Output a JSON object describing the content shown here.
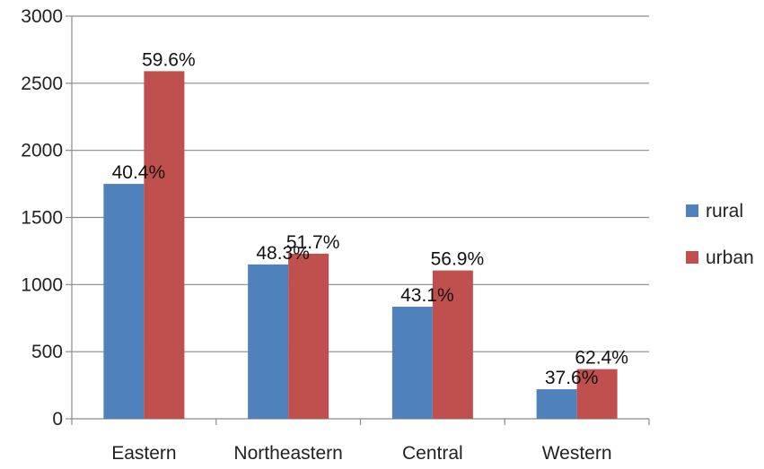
{
  "chart_data": {
    "type": "bar",
    "categories": [
      "Eastern",
      "Northeastern",
      "Central",
      "Western"
    ],
    "series": [
      {
        "name": "rural",
        "color": "#4f81bd",
        "values": [
          1750,
          1150,
          835,
          220
        ],
        "labels": [
          "40.4%",
          "48.3%",
          "43.1%",
          "37.6%"
        ]
      },
      {
        "name": "urban",
        "color": "#c0504d",
        "values": [
          2590,
          1230,
          1105,
          370
        ],
        "labels": [
          "59.6%",
          "51.7%",
          "56.9%",
          "62.4%"
        ]
      }
    ],
    "title": "",
    "xlabel": "",
    "ylabel": "",
    "ylim": [
      0,
      3000
    ],
    "yticks": [
      0,
      500,
      1000,
      1500,
      2000,
      2500,
      3000
    ],
    "grid": true,
    "legend": "right"
  }
}
